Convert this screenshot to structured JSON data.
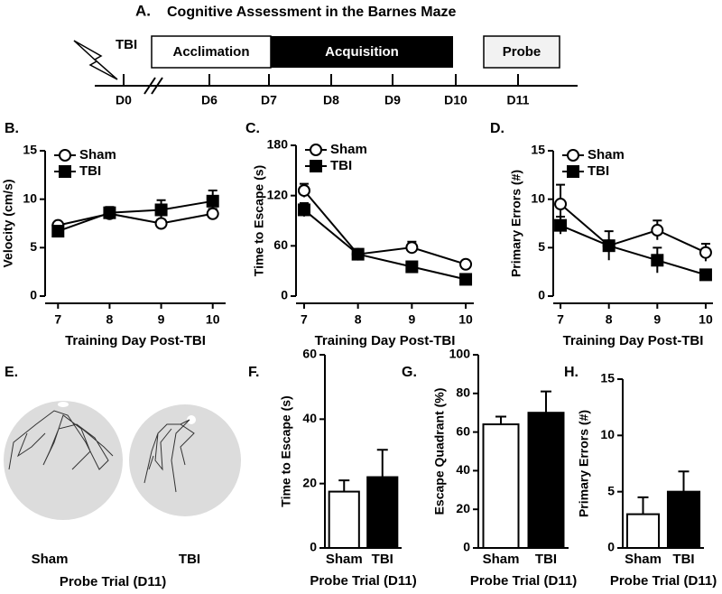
{
  "timeline": {
    "panel": "A.",
    "title": "Cognitive Assessment in the Barnes Maze",
    "injury_label": "TBI",
    "phases": [
      "Acclimation",
      "Acquisition",
      "Probe"
    ],
    "days": [
      "D0",
      "D6",
      "D7",
      "D8",
      "D9",
      "D10",
      "D11"
    ]
  },
  "trajectories": {
    "panel": "E.",
    "groups": [
      "Sham",
      "TBI"
    ],
    "x_label": "Probe Trial (D11)"
  },
  "chart_data": [
    {
      "type": "line",
      "panel": "B.",
      "x_label": "Training Day Post-TBI",
      "y_label": "Velocity (cm/s)",
      "x": [
        7,
        8,
        9,
        10
      ],
      "xlim": [
        6.75,
        10.25
      ],
      "xticks": [
        7,
        8,
        9,
        10
      ],
      "ylim": [
        0,
        15
      ],
      "yticks": [
        0,
        5,
        10,
        15
      ],
      "legend": "upper left",
      "series": [
        {
          "name": "Sham",
          "color": "#ffffff",
          "marker": "circle",
          "values": [
            7.3,
            8.5,
            7.5,
            8.5
          ],
          "errors": [
            0.3,
            0.4,
            0.4,
            0.5
          ]
        },
        {
          "name": "TBI",
          "color": "#000000",
          "marker": "square",
          "values": [
            6.7,
            8.6,
            8.9,
            9.8
          ],
          "errors": [
            0.3,
            0.6,
            1.0,
            1.1
          ]
        }
      ]
    },
    {
      "type": "line",
      "panel": "C.",
      "x_label": "Training Day Post-TBI",
      "y_label": "Time to Escape (s)",
      "x": [
        7,
        8,
        9,
        10
      ],
      "xlim": [
        6.85,
        10.15
      ],
      "xticks": [
        7,
        8,
        9,
        10
      ],
      "ylim": [
        0,
        180
      ],
      "yticks": [
        0,
        60,
        120,
        180
      ],
      "legend": "upper left",
      "series": [
        {
          "name": "Sham",
          "color": "#ffffff",
          "marker": "circle",
          "values": [
            126,
            50,
            58,
            38
          ],
          "errors": [
            8,
            4,
            7,
            3
          ]
        },
        {
          "name": "TBI",
          "color": "#000000",
          "marker": "square",
          "values": [
            103,
            50,
            35,
            20
          ],
          "errors": [
            8,
            5,
            3,
            3
          ]
        }
      ]
    },
    {
      "type": "line",
      "panel": "D.",
      "x_label": "Training Day Post-TBI",
      "y_label": "Primary Errors (#)",
      "x": [
        7,
        8,
        9,
        10
      ],
      "xlim": [
        6.85,
        10.15
      ],
      "xticks": [
        7,
        8,
        9,
        10
      ],
      "ylim": [
        0,
        15
      ],
      "yticks": [
        0,
        5,
        10,
        15
      ],
      "legend": "upper left",
      "series": [
        {
          "name": "Sham",
          "color": "#ffffff",
          "marker": "circle",
          "values": [
            9.5,
            5.2,
            6.8,
            4.5
          ],
          "errors": [
            2.0,
            0.5,
            1.0,
            0.9
          ]
        },
        {
          "name": "TBI",
          "color": "#000000",
          "marker": "square",
          "values": [
            7.3,
            5.2,
            3.7,
            2.2
          ],
          "errors": [
            0.9,
            1.5,
            1.3,
            0.3
          ]
        }
      ]
    },
    {
      "type": "bar",
      "panel": "F.",
      "x_label": "Probe Trial (D11)",
      "y_label": "Time to Escape (s)",
      "categories": [
        "Sham",
        "TBI"
      ],
      "values": [
        17.5,
        22
      ],
      "errors": [
        3.5,
        8.5
      ],
      "colors": [
        "#ffffff",
        "#000000"
      ],
      "ylim": [
        0,
        60
      ],
      "yticks": [
        0,
        20,
        40,
        60
      ]
    },
    {
      "type": "bar",
      "panel": "G.",
      "x_label": "Probe Trial (D11)",
      "y_label": "Escape Quadrant (%)",
      "categories": [
        "Sham",
        "TBI"
      ],
      "values": [
        64,
        70
      ],
      "errors": [
        4,
        11
      ],
      "colors": [
        "#ffffff",
        "#000000"
      ],
      "ylim": [
        0,
        100
      ],
      "yticks": [
        0,
        20,
        40,
        60,
        80,
        100
      ]
    },
    {
      "type": "bar",
      "panel": "H.",
      "x_label": "Probe Trial (D11)",
      "y_label": "Primary Errors (#)",
      "categories": [
        "Sham",
        "TBI"
      ],
      "values": [
        3,
        5
      ],
      "errors": [
        1.5,
        1.8
      ],
      "colors": [
        "#ffffff",
        "#000000"
      ],
      "ylim": [
        0,
        15
      ],
      "yticks": [
        0,
        5,
        10,
        15
      ]
    }
  ]
}
